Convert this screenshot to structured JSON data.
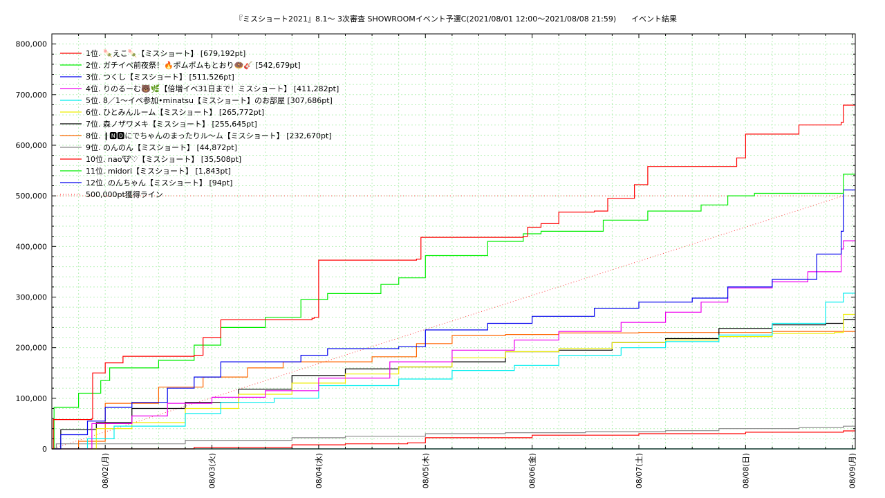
{
  "chart_data": {
    "type": "line",
    "title": "『ミスショート2021』8.1〜 3次審査 SHOWROOMイベント予選C(2021/08/01 12:00〜2021/08/08 21:59)",
    "subtitle": "イベント結果",
    "x_ticks": [
      "08/02(月)",
      "08/03(火)",
      "08/04(水)",
      "08/05(木)",
      "08/06(金)",
      "08/07(土)",
      "08/08(日)",
      "08/09(月)"
    ],
    "xlim": [
      "2021-08-01 12:00",
      "2021-08-09 00:40"
    ],
    "ylim": [
      0,
      820000
    ],
    "y_ticks": [
      "0",
      "100,000",
      "200,000",
      "300,000",
      "400,000",
      "500,000",
      "600,000",
      "700,000",
      "800,000"
    ],
    "grid": true,
    "legend_position": "top-left",
    "reference_line": {
      "name": "500,000pt獲得ライン",
      "color": "#ff4040",
      "value": 500000
    },
    "series": [
      {
        "name": "1位. 🍡えこ🍡【ミスショート】 [679,192pt]",
        "color": "#ff0000",
        "points": [
          [
            "2021-08-01 12:00",
            0
          ],
          [
            "2021-08-01 12:20",
            58000
          ],
          [
            "2021-08-01 21:00",
            60000
          ],
          [
            "2021-08-01 21:10",
            150000
          ],
          [
            "2021-08-02 00:00",
            170000
          ],
          [
            "2021-08-02 04:00",
            183000
          ],
          [
            "2021-08-02 20:00",
            185000
          ],
          [
            "2021-08-02 22:00",
            220000
          ],
          [
            "2021-08-03 02:00",
            255000
          ],
          [
            "2021-08-03 22:30",
            258000
          ],
          [
            "2021-08-03 23:00",
            260000
          ],
          [
            "2021-08-04 00:00",
            373000
          ],
          [
            "2021-08-04 22:00",
            375000
          ],
          [
            "2021-08-04 23:00",
            418000
          ],
          [
            "2021-08-05 22:00",
            420000
          ],
          [
            "2021-08-05 23:00",
            438000
          ],
          [
            "2021-08-06 02:00",
            445000
          ],
          [
            "2021-08-06 06:00",
            468000
          ],
          [
            "2021-08-06 14:00",
            470000
          ],
          [
            "2021-08-06 17:00",
            495000
          ],
          [
            "2021-08-06 23:00",
            522000
          ],
          [
            "2021-08-07 02:00",
            558000
          ],
          [
            "2021-08-07 22:00",
            575000
          ],
          [
            "2021-08-08 00:00",
            622000
          ],
          [
            "2021-08-08 12:00",
            640000
          ],
          [
            "2021-08-08 21:30",
            645000
          ],
          [
            "2021-08-08 22:00",
            679192
          ],
          [
            "2021-08-09 00:40",
            679192
          ]
        ]
      },
      {
        "name": "2位. ガチイベ前夜祭！🔥ポムポムもとおり🍩🎸 [542,679pt]",
        "color": "#00ee00",
        "points": [
          [
            "2021-08-01 12:00",
            0
          ],
          [
            "2021-08-01 12:30",
            82000
          ],
          [
            "2021-08-01 18:00",
            110000
          ],
          [
            "2021-08-01 23:00",
            135000
          ],
          [
            "2021-08-02 01:00",
            160000
          ],
          [
            "2021-08-02 12:00",
            175000
          ],
          [
            "2021-08-02 20:00",
            205000
          ],
          [
            "2021-08-03 02:00",
            240000
          ],
          [
            "2021-08-03 12:00",
            260000
          ],
          [
            "2021-08-03 20:00",
            295000
          ],
          [
            "2021-08-04 02:00",
            307000
          ],
          [
            "2021-08-04 14:00",
            325000
          ],
          [
            "2021-08-04 18:00",
            338000
          ],
          [
            "2021-08-05 00:00",
            382000
          ],
          [
            "2021-08-05 14:00",
            410000
          ],
          [
            "2021-08-05 22:00",
            425000
          ],
          [
            "2021-08-06 02:00",
            430000
          ],
          [
            "2021-08-06 16:00",
            452000
          ],
          [
            "2021-08-07 02:00",
            470000
          ],
          [
            "2021-08-07 14:00",
            482000
          ],
          [
            "2021-08-07 20:00",
            500000
          ],
          [
            "2021-08-08 02:00",
            505000
          ],
          [
            "2021-08-08 21:00",
            505000
          ],
          [
            "2021-08-08 22:00",
            542679
          ],
          [
            "2021-08-09 00:40",
            542679
          ]
        ]
      },
      {
        "name": "3位. つくし【ミスショート】 [511,526pt]",
        "color": "#0000ee",
        "points": [
          [
            "2021-08-01 12:00",
            0
          ],
          [
            "2021-08-01 14:00",
            28000
          ],
          [
            "2021-08-01 20:00",
            55000
          ],
          [
            "2021-08-02 00:00",
            82000
          ],
          [
            "2021-08-02 06:00",
            92000
          ],
          [
            "2021-08-02 14:00",
            120000
          ],
          [
            "2021-08-02 20:00",
            142000
          ],
          [
            "2021-08-03 02:00",
            172000
          ],
          [
            "2021-08-03 12:00",
            172000
          ],
          [
            "2021-08-03 20:00",
            185000
          ],
          [
            "2021-08-04 02:00",
            198000
          ],
          [
            "2021-08-04 18:00",
            202000
          ],
          [
            "2021-08-05 00:00",
            235000
          ],
          [
            "2021-08-05 14:00",
            248000
          ],
          [
            "2021-08-06 00:00",
            262000
          ],
          [
            "2021-08-06 14:00",
            278000
          ],
          [
            "2021-08-07 00:00",
            290000
          ],
          [
            "2021-08-07 12:00",
            298000
          ],
          [
            "2021-08-07 20:00",
            320000
          ],
          [
            "2021-08-08 06:00",
            335000
          ],
          [
            "2021-08-08 16:00",
            385000
          ],
          [
            "2021-08-08 21:30",
            430000
          ],
          [
            "2021-08-08 22:00",
            511526
          ],
          [
            "2021-08-09 00:40",
            511526
          ]
        ]
      },
      {
        "name": "4位. りのるーむ🐻🌿【倍増イベ31日まで！ミスショート】 [411,282pt]",
        "color": "#ee00ee",
        "points": [
          [
            "2021-08-01 12:00",
            0
          ],
          [
            "2021-08-01 21:00",
            50000
          ],
          [
            "2021-08-02 06:00",
            65000
          ],
          [
            "2021-08-02 14:00",
            90000
          ],
          [
            "2021-08-03 00:00",
            102000
          ],
          [
            "2021-08-03 12:00",
            115000
          ],
          [
            "2021-08-04 00:00",
            140000
          ],
          [
            "2021-08-04 16:00",
            172000
          ],
          [
            "2021-08-05 06:00",
            195000
          ],
          [
            "2021-08-05 20:00",
            215000
          ],
          [
            "2021-08-06 06:00",
            232000
          ],
          [
            "2021-08-06 20:00",
            250000
          ],
          [
            "2021-08-07 06:00",
            270000
          ],
          [
            "2021-08-07 14:00",
            290000
          ],
          [
            "2021-08-07 20:00",
            318000
          ],
          [
            "2021-08-08 06:00",
            330000
          ],
          [
            "2021-08-08 14:00",
            350000
          ],
          [
            "2021-08-08 21:30",
            395000
          ],
          [
            "2021-08-08 22:00",
            411282
          ],
          [
            "2021-08-09 00:40",
            411282
          ]
        ]
      },
      {
        "name": "5位. 8／1〜イベ参加•minatsu【ミスショート】のお部屋 [307,686pt]",
        "color": "#00eeee",
        "points": [
          [
            "2021-08-01 12:00",
            0
          ],
          [
            "2021-08-01 20:00",
            20000
          ],
          [
            "2021-08-02 02:00",
            45000
          ],
          [
            "2021-08-02 18:00",
            70000
          ],
          [
            "2021-08-03 02:00",
            92000
          ],
          [
            "2021-08-03 14:00",
            100000
          ],
          [
            "2021-08-04 00:00",
            125000
          ],
          [
            "2021-08-04 18:00",
            138000
          ],
          [
            "2021-08-05 06:00",
            155000
          ],
          [
            "2021-08-05 20:00",
            165000
          ],
          [
            "2021-08-06 06:00",
            185000
          ],
          [
            "2021-08-06 20:00",
            200000
          ],
          [
            "2021-08-07 06:00",
            212000
          ],
          [
            "2021-08-07 18:00",
            225000
          ],
          [
            "2021-08-08 06:00",
            248000
          ],
          [
            "2021-08-08 18:00",
            290000
          ],
          [
            "2021-08-08 22:00",
            307686
          ],
          [
            "2021-08-09 00:40",
            307686
          ]
        ]
      },
      {
        "name": "6位. ひとみんルーム【ミスショート】 [265,772pt]",
        "color": "#eeee00",
        "points": [
          [
            "2021-08-01 12:00",
            0
          ],
          [
            "2021-08-01 22:00",
            40000
          ],
          [
            "2021-08-02 06:00",
            52000
          ],
          [
            "2021-08-02 18:00",
            80000
          ],
          [
            "2021-08-03 06:00",
            108000
          ],
          [
            "2021-08-03 18:00",
            130000
          ],
          [
            "2021-08-04 06:00",
            148000
          ],
          [
            "2021-08-04 18:00",
            162000
          ],
          [
            "2021-08-05 06:00",
            180000
          ],
          [
            "2021-08-05 18:00",
            192000
          ],
          [
            "2021-08-06 06:00",
            198000
          ],
          [
            "2021-08-06 18:00",
            210000
          ],
          [
            "2021-08-07 06:00",
            215000
          ],
          [
            "2021-08-07 18:00",
            222000
          ],
          [
            "2021-08-08 06:00",
            228000
          ],
          [
            "2021-08-08 20:00",
            230000
          ],
          [
            "2021-08-08 22:00",
            265772
          ],
          [
            "2021-08-09 00:40",
            265772
          ]
        ]
      },
      {
        "name": "7位. 森ノザワメキ【ミスショート】 [255,645pt]",
        "color": "#000000",
        "points": [
          [
            "2021-08-01 12:00",
            0
          ],
          [
            "2021-08-01 14:00",
            38000
          ],
          [
            "2021-08-01 22:00",
            52000
          ],
          [
            "2021-08-02 06:00",
            80000
          ],
          [
            "2021-08-02 18:00",
            92000
          ],
          [
            "2021-08-03 06:00",
            118000
          ],
          [
            "2021-08-03 18:00",
            145000
          ],
          [
            "2021-08-04 06:00",
            158000
          ],
          [
            "2021-08-04 18:00",
            162000
          ],
          [
            "2021-08-05 06:00",
            172000
          ],
          [
            "2021-08-05 18:00",
            192000
          ],
          [
            "2021-08-06 06:00",
            195000
          ],
          [
            "2021-08-06 18:00",
            210000
          ],
          [
            "2021-08-07 06:00",
            218000
          ],
          [
            "2021-08-07 18:00",
            238000
          ],
          [
            "2021-08-08 06:00",
            245000
          ],
          [
            "2021-08-08 18:00",
            248000
          ],
          [
            "2021-08-08 22:00",
            255645
          ],
          [
            "2021-08-09 00:40",
            255645
          ]
        ]
      },
      {
        "name": "8位. ❙🅽🅳にでちゃんのまったりル〜ム【ミスショート】 [232,670pt]",
        "color": "#ff6600",
        "points": [
          [
            "2021-08-01 12:00",
            0
          ],
          [
            "2021-08-01 18:00",
            15000
          ],
          [
            "2021-08-02 00:00",
            90000
          ],
          [
            "2021-08-02 12:00",
            122000
          ],
          [
            "2021-08-02 22:00",
            142000
          ],
          [
            "2021-08-03 08:00",
            160000
          ],
          [
            "2021-08-03 16:00",
            172000
          ],
          [
            "2021-08-04 12:00",
            182000
          ],
          [
            "2021-08-04 22:00",
            208000
          ],
          [
            "2021-08-05 06:00",
            224000
          ],
          [
            "2021-08-05 18:00",
            226000
          ],
          [
            "2021-08-06 06:00",
            229000
          ],
          [
            "2021-08-07 00:00",
            230000
          ],
          [
            "2021-08-08 06:00",
            232000
          ],
          [
            "2021-08-09 00:40",
            232670
          ]
        ]
      },
      {
        "name": "9位. のんのん【ミスショート】 [44,872pt]",
        "color": "#888888",
        "points": [
          [
            "2021-08-01 12:00",
            0
          ],
          [
            "2021-08-01 13:00",
            10000
          ],
          [
            "2021-08-02 18:00",
            17000
          ],
          [
            "2021-08-03 18:00",
            22000
          ],
          [
            "2021-08-04 06:00",
            25000
          ],
          [
            "2021-08-05 00:00",
            30000
          ],
          [
            "2021-08-05 18:00",
            32000
          ],
          [
            "2021-08-06 12:00",
            34000
          ],
          [
            "2021-08-07 06:00",
            36000
          ],
          [
            "2021-08-07 18:00",
            40000
          ],
          [
            "2021-08-08 12:00",
            42000
          ],
          [
            "2021-08-08 22:00",
            44872
          ],
          [
            "2021-08-09 00:40",
            44872
          ]
        ]
      },
      {
        "name": "10位. nao🐮♡【ミスショート】 [35,508pt]",
        "color": "#ff0000",
        "points": [
          [
            "2021-08-01 12:00",
            0
          ],
          [
            "2021-08-02 20:00",
            3000
          ],
          [
            "2021-08-03 18:00",
            8000
          ],
          [
            "2021-08-04 06:00",
            10000
          ],
          [
            "2021-08-04 20:00",
            12000
          ],
          [
            "2021-08-05 00:00",
            22000
          ],
          [
            "2021-08-06 00:00",
            27000
          ],
          [
            "2021-08-07 00:00",
            30000
          ],
          [
            "2021-08-08 00:00",
            33000
          ],
          [
            "2021-08-08 22:00",
            35508
          ],
          [
            "2021-08-09 00:40",
            35508
          ]
        ]
      },
      {
        "name": "11位. midori【ミスショート】 [1,843pt]",
        "color": "#00ee00",
        "points": [
          [
            "2021-08-01 12:00",
            0
          ],
          [
            "2021-08-09 00:40",
            1843
          ]
        ]
      },
      {
        "name": "12位. のんちゃん【ミスショート】 [94pt]",
        "color": "#0000ee",
        "points": [
          [
            "2021-08-01 12:00",
            0
          ],
          [
            "2021-08-09 00:40",
            94
          ]
        ]
      }
    ]
  }
}
